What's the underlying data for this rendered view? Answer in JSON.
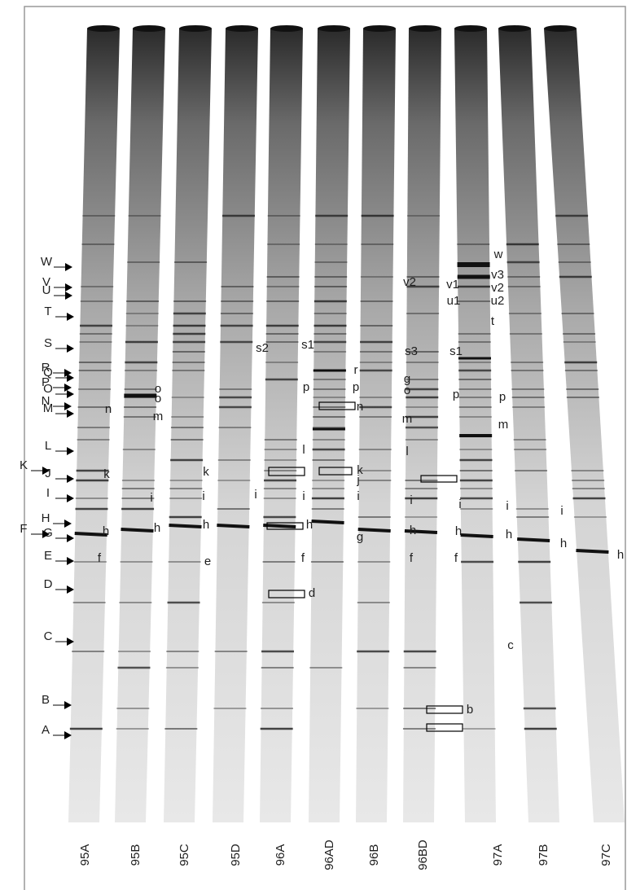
{
  "marker_labels": [
    "W",
    "V",
    "U",
    "T",
    "S",
    "R",
    "Q",
    "P",
    "O",
    "N",
    "M",
    "L",
    "K",
    "J",
    "I",
    "H",
    "G",
    "F",
    "E",
    "D",
    "C",
    "B",
    "A"
  ],
  "lane_labels": [
    "95A",
    "95B",
    "95C",
    "95D",
    "96A",
    "96AD",
    "96B",
    "96BD",
    "97A",
    "97B",
    "97C"
  ],
  "band_labels": [
    "n",
    "k",
    "h",
    "f",
    "o",
    "o",
    "m",
    "i",
    "h",
    "k",
    "i",
    "h",
    "e",
    "s2",
    "i",
    "s1",
    "p",
    "l",
    "i",
    "h",
    "f",
    "d",
    "r",
    "p",
    "n",
    "k",
    "j",
    "i",
    "g",
    "v2",
    "s3",
    "g",
    "o",
    "m",
    "l",
    "i",
    "h",
    "f",
    "v1",
    "u1",
    "s1",
    "p",
    "i",
    "h",
    "f",
    "b",
    "w",
    "v3",
    "v2",
    "u2",
    "t",
    "p",
    "m",
    "i",
    "h",
    "c",
    "i",
    "h",
    "h"
  ]
}
